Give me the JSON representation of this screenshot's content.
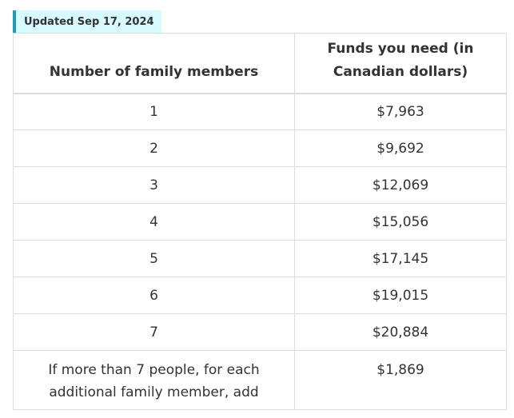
{
  "badge": {
    "text": "Updated Sep 17, 2024",
    "background_color": "#d7faff",
    "accent_color": "#269abc"
  },
  "table": {
    "headers": [
      "Number of family members",
      "Funds you need (in Canadian dollars)"
    ],
    "rows": [
      {
        "members": "1",
        "funds": "$7,963"
      },
      {
        "members": "2",
        "funds": "$9,692"
      },
      {
        "members": "3",
        "funds": "$12,069"
      },
      {
        "members": "4",
        "funds": "$15,056"
      },
      {
        "members": "5",
        "funds": "$17,145"
      },
      {
        "members": "6",
        "funds": "$19,015"
      },
      {
        "members": "7",
        "funds": "$20,884"
      },
      {
        "members": "If more than 7 people, for each additional family member, add",
        "funds": "$1,869"
      }
    ]
  }
}
